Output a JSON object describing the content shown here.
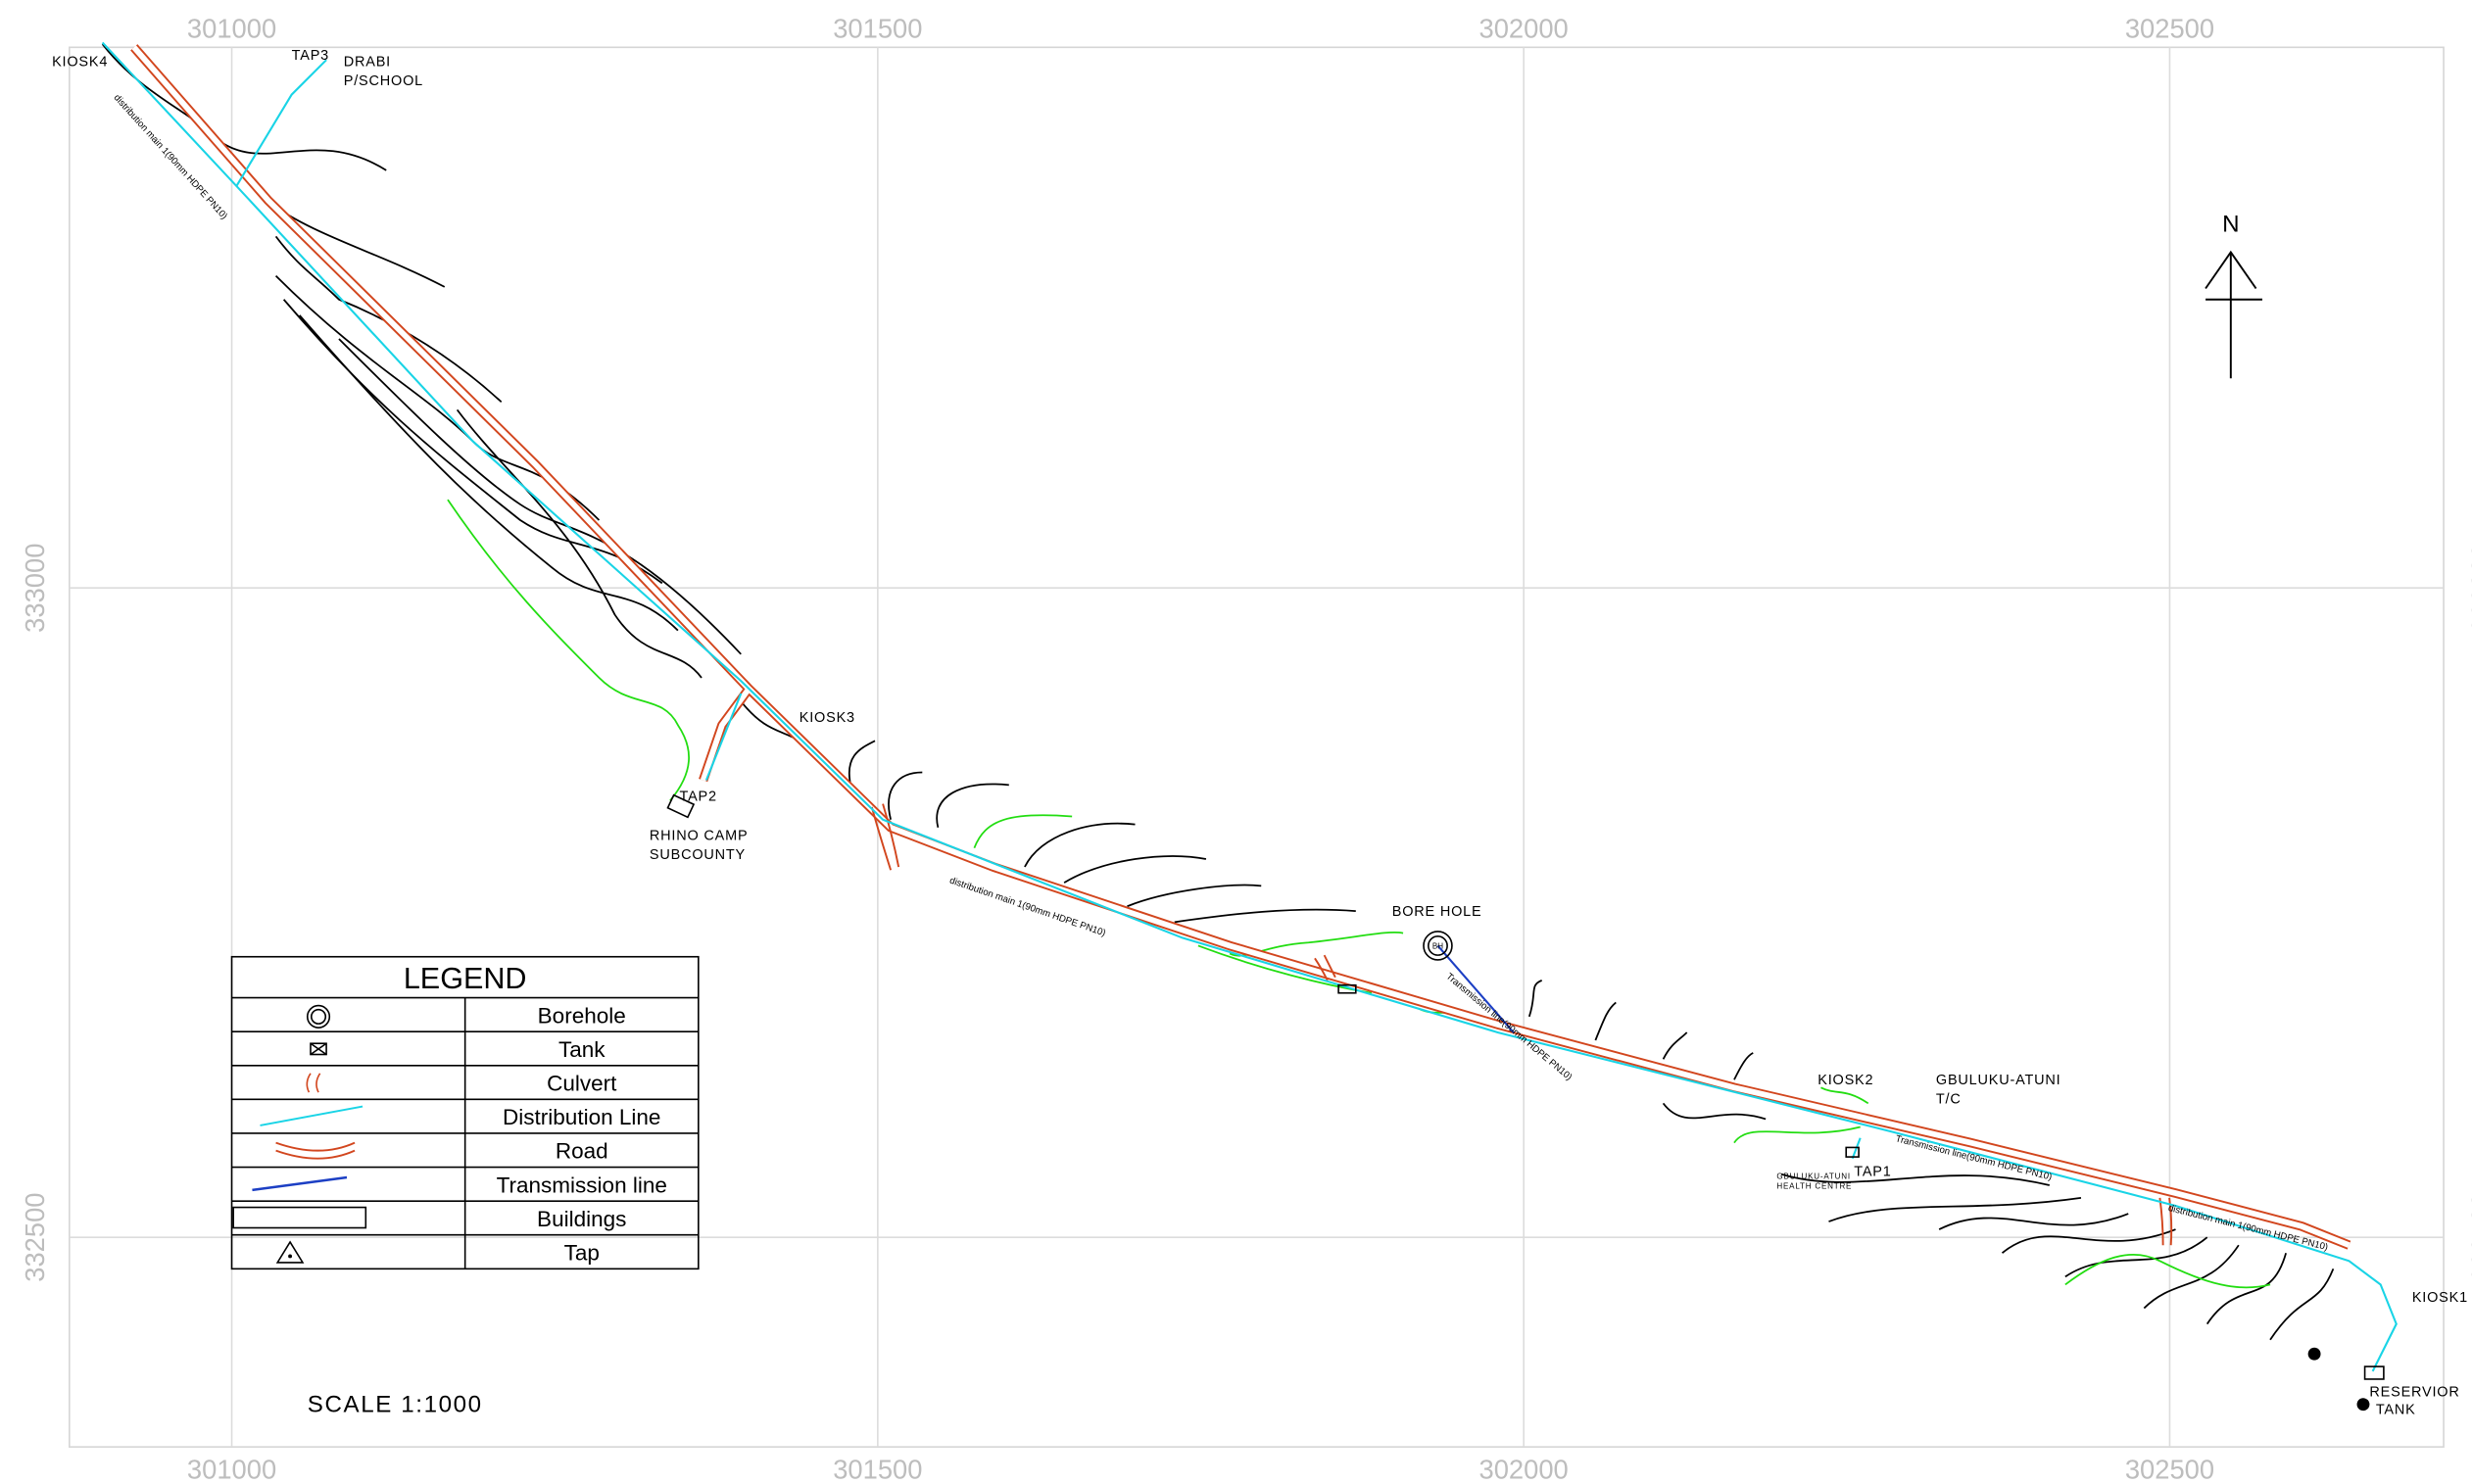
{
  "grid": {
    "eastings": [
      301000,
      301500,
      302000,
      302500
    ],
    "northings": [
      333000,
      332500
    ]
  },
  "labels": [
    "KIOSK4",
    "TAP3",
    "DRABI",
    "P/SCHOOL",
    "KIOSK3",
    "TAP2",
    "RHINO CAMP",
    "SUBCOUNTY",
    "BORE HOLE",
    "KIOSK2",
    "GBULUKU-ATUNI",
    "T/C",
    "TAP1",
    "GBULUKU-ATUNI",
    "HEALTH CENTRE",
    "KIOSK1",
    "RESERVIOR",
    "TANK"
  ],
  "pipe_annotations": [
    "distribution main 1(90mm HDPE PN10)",
    "distribution main 1(90mm HDPE PN10)",
    "Transmission line(90mm HDPE PN10)",
    "Transmission line(90mm HDPE PN10)",
    "distribution main 1(90mm HDPE PN10)"
  ],
  "legend": {
    "title": "LEGEND",
    "items": [
      "Borehole",
      "Tank",
      "Culvert",
      "Distribution Line",
      "Road",
      "Transmission line",
      "Buildings",
      "Tap"
    ]
  },
  "scale": "SCALE 1:1000",
  "north": "N"
}
